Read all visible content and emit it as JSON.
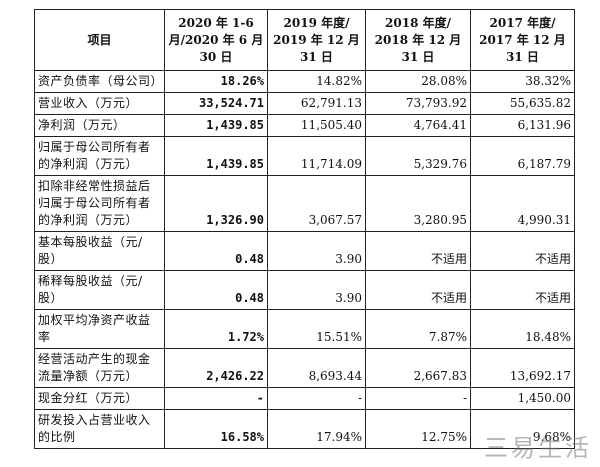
{
  "table": {
    "header": [
      "项目",
      "2020 年 1-6 月/2020 年 6 月 30 日",
      "2019 年度/ 2019 年 12 月 31 日",
      "2018 年度/ 2018 年 12 月 31 日",
      "2017 年度/ 2017 年 12 月 31 日"
    ],
    "rows": [
      [
        "资产负债率（母公司）",
        "18.26%",
        "14.82%",
        "28.08%",
        "38.32%"
      ],
      [
        "营业收入（万元）",
        "33,524.71",
        "62,791.13",
        "73,793.92",
        "55,635.82"
      ],
      [
        "净利润（万元）",
        "1,439.85",
        "11,505.40",
        "4,764.41",
        "6,131.96"
      ],
      [
        "归属于母公司所有者的净利润（万元）",
        "1,439.85",
        "11,714.09",
        "5,329.76",
        "6,187.79"
      ],
      [
        "扣除非经常性损益后归属于母公司所有者的净利润（万元）",
        "1,326.90",
        "3,067.57",
        "3,280.95",
        "4,990.31"
      ],
      [
        "基本每股收益（元/股）",
        "0.48",
        "3.90",
        "不适用",
        "不适用"
      ],
      [
        "稀释每股收益（元/股）",
        "0.48",
        "3.90",
        "不适用",
        "不适用"
      ],
      [
        "加权平均净资产收益率",
        "1.72%",
        "15.51%",
        "7.87%",
        "18.48%"
      ],
      [
        "经营活动产生的现金流量净额（万元）",
        "2,426.22",
        "8,693.44",
        "2,667.83",
        "13,692.17"
      ],
      [
        "现金分红（万元）",
        "-",
        "-",
        "-",
        "1,450.00"
      ],
      [
        "研发投入占营业收入的比例",
        "16.58%",
        "17.94%",
        "12.75%",
        "9.68%"
      ]
    ]
  },
  "watermark": "三易生活"
}
